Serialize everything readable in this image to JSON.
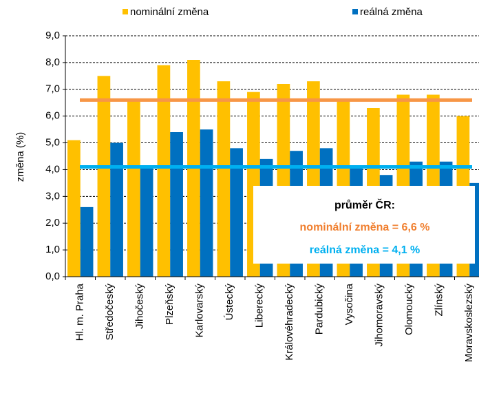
{
  "chart_data": {
    "type": "bar",
    "ylabel": "změna (%)",
    "categories": [
      "Hl. m. Praha",
      "Středočeský",
      "Jihočeský",
      "Plzeňský",
      "Karlovarský",
      "Ústecký",
      "Liberecký",
      "Královéhradecký",
      "Pardubický",
      "Vysočina",
      "Jihomoravský",
      "Olomoucký",
      "Zlínský",
      "Moravskoslezský"
    ],
    "series": [
      {
        "name": "nominální změna",
        "color": "#FFC000",
        "values": [
          5.1,
          7.5,
          6.6,
          7.9,
          8.1,
          7.3,
          6.9,
          7.2,
          7.3,
          6.6,
          6.3,
          6.8,
          6.8,
          6.0
        ]
      },
      {
        "name": "reálná změna",
        "color": "#0070C0",
        "values": [
          2.6,
          5.0,
          4.1,
          5.4,
          5.5,
          4.8,
          4.4,
          4.7,
          4.8,
          4.1,
          3.8,
          4.3,
          4.3,
          3.5
        ]
      }
    ],
    "averages": [
      {
        "value": 6.6,
        "color": "#F79646"
      },
      {
        "value": 4.1,
        "color": "#00B0F0"
      }
    ],
    "annotation": {
      "title": "průměr ČR:",
      "lines": [
        {
          "text": "nominální změna = 6,6 %",
          "color": "#F07F2F"
        },
        {
          "text": "reálná změna = 4,1 %",
          "color": "#00B0F0"
        }
      ]
    },
    "ylim": [
      0,
      9
    ],
    "yticks": [
      {
        "value": 0,
        "label": "0,0"
      },
      {
        "value": 1,
        "label": "1,0"
      },
      {
        "value": 2,
        "label": "2,0"
      },
      {
        "value": 3,
        "label": "3,0"
      },
      {
        "value": 4,
        "label": "4,0"
      },
      {
        "value": 5,
        "label": "5,0"
      },
      {
        "value": 6,
        "label": "6,0"
      },
      {
        "value": 7,
        "label": "7,0"
      },
      {
        "value": 8,
        "label": "8,0"
      },
      {
        "value": 9,
        "label": "9,0"
      }
    ],
    "grid": true
  }
}
